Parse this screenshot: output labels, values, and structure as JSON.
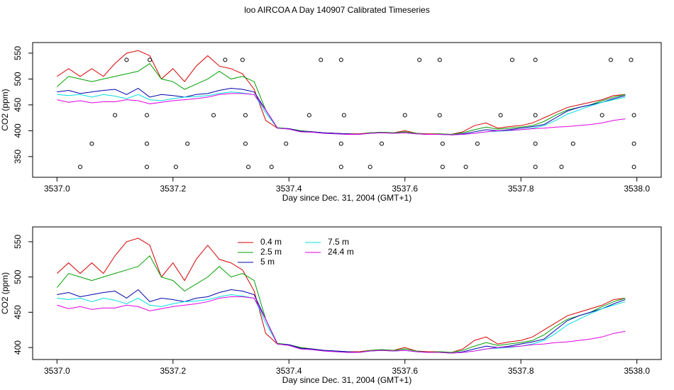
{
  "chart_data": [
    {
      "type": "line",
      "title": "loo AIRCOA A  Day 140907  Calibrated Timeseries",
      "x_label": "Day since Dec. 31, 2004 (GMT+1)",
      "y_label": "CO2 (ppm)",
      "xlim": [
        3536.958,
        3538.042
      ],
      "ylim": [
        310,
        570.5
      ],
      "xticks": [
        {
          "value": 3537.0,
          "label": "3537.0"
        },
        {
          "value": 3537.2,
          "label": "3537.2"
        },
        {
          "value": 3537.4,
          "label": "3537.4"
        },
        {
          "value": 3537.6,
          "label": "3537.6"
        },
        {
          "value": 3537.8,
          "label": "3537.8"
        },
        {
          "value": 3538.0,
          "label": "3538.0"
        }
      ],
      "yticks": [
        350,
        400,
        450,
        500,
        550
      ],
      "x": [
        3537.0,
        3537.02,
        3537.04,
        3537.06,
        3537.08,
        3537.1,
        3537.12,
        3537.14,
        3537.16,
        3537.18,
        3537.2,
        3537.22,
        3537.24,
        3537.26,
        3537.28,
        3537.3,
        3537.32,
        3537.34,
        3537.36,
        3537.38,
        3537.4,
        3537.42,
        3537.44,
        3537.46,
        3537.48,
        3537.5,
        3537.52,
        3537.54,
        3537.56,
        3537.58,
        3537.6,
        3537.62,
        3537.64,
        3537.66,
        3537.68,
        3537.7,
        3537.72,
        3537.74,
        3537.76,
        3537.78,
        3537.8,
        3537.82,
        3537.84,
        3537.86,
        3537.88,
        3537.9,
        3537.92,
        3537.94,
        3537.96,
        3537.98
      ],
      "series": [
        {
          "color": "#d40000",
          "values": [
            505,
            520,
            505,
            520,
            505,
            530,
            550,
            555,
            545,
            500,
            520,
            495,
            525,
            545,
            525,
            520,
            510,
            480,
            420,
            405,
            404,
            400,
            398,
            396,
            395,
            394,
            394,
            396,
            397,
            396,
            400,
            395,
            394,
            394,
            393,
            398,
            410,
            415,
            405,
            408,
            410,
            415,
            425,
            435,
            445,
            450,
            455,
            460,
            468,
            470
          ]
        },
        {
          "color": "#00a000",
          "values": [
            485,
            505,
            500,
            495,
            500,
            505,
            510,
            515,
            530,
            500,
            495,
            480,
            490,
            500,
            515,
            500,
            505,
            495,
            440,
            406,
            404,
            400,
            398,
            396,
            395,
            394,
            393,
            396,
            397,
            396,
            398,
            395,
            393,
            394,
            393,
            396,
            402,
            407,
            403,
            405,
            407,
            410,
            418,
            430,
            440,
            445,
            450,
            458,
            465,
            470
          ]
        },
        {
          "color": "#0000b0",
          "values": [
            475,
            478,
            472,
            475,
            478,
            480,
            470,
            482,
            465,
            470,
            468,
            465,
            470,
            472,
            478,
            482,
            480,
            475,
            440,
            405,
            404,
            399,
            398,
            396,
            395,
            394,
            393,
            395,
            396,
            395,
            396,
            394,
            393,
            393,
            392,
            394,
            398,
            402,
            400,
            402,
            405,
            408,
            412,
            425,
            438,
            445,
            450,
            455,
            462,
            468
          ]
        },
        {
          "color": "#00dede",
          "values": [
            470,
            468,
            470,
            465,
            470,
            467,
            462,
            470,
            460,
            458,
            462,
            465,
            466,
            468,
            472,
            475,
            473,
            470,
            435,
            405,
            403,
            398,
            397,
            395,
            394,
            393,
            393,
            395,
            396,
            395,
            396,
            394,
            393,
            393,
            392,
            393,
            395,
            398,
            399,
            400,
            402,
            405,
            410,
            420,
            432,
            440,
            448,
            455,
            460,
            465
          ]
        },
        {
          "color": "#e000e0",
          "values": [
            460,
            455,
            458,
            454,
            456,
            456,
            460,
            458,
            452,
            455,
            458,
            460,
            462,
            465,
            470,
            472,
            472,
            470,
            440,
            405,
            403,
            398,
            397,
            395,
            394,
            393,
            393,
            395,
            396,
            395,
            396,
            394,
            393,
            393,
            392,
            393,
            395,
            398,
            400,
            401,
            402,
            404,
            405,
            407,
            408,
            410,
            412,
            415,
            420,
            423
          ]
        }
      ],
      "points": {
        "x": [
          3537.12,
          3537.16,
          3537.29,
          3537.32,
          3537.455,
          3537.49,
          3537.625,
          3537.66,
          3537.785,
          3537.825,
          3537.955,
          3537.99,
          3537.1,
          3537.155,
          3537.27,
          3537.325,
          3537.435,
          3537.495,
          3537.6,
          3537.66,
          3537.765,
          3537.825,
          3537.94,
          3537.995,
          3537.06,
          3537.155,
          3537.225,
          3537.325,
          3537.395,
          3537.49,
          3537.56,
          3537.665,
          3537.725,
          3537.825,
          3537.89,
          3537.995,
          3537.04,
          3537.155,
          3537.205,
          3537.33,
          3537.37,
          3537.49,
          3537.54,
          3537.665,
          3537.705,
          3537.825,
          3537.87,
          3537.995
        ],
        "y": [
          537,
          537,
          537,
          537,
          537,
          537,
          537,
          537,
          537,
          537,
          537,
          537,
          430,
          430,
          430,
          430,
          430,
          430,
          430,
          430,
          430,
          430,
          430,
          430,
          375,
          375,
          375,
          375,
          375,
          375,
          375,
          375,
          375,
          375,
          375,
          375,
          330,
          330,
          330,
          330,
          330,
          330,
          330,
          330,
          330,
          330,
          330,
          330
        ]
      }
    },
    {
      "type": "line",
      "x_label": "Day since Dec. 31, 2004 (GMT+1)",
      "y_label": "CO2 (ppm)",
      "xlim": [
        3536.958,
        3538.042
      ],
      "ylim": [
        383,
        571
      ],
      "xticks": [
        {
          "value": 3537.0,
          "label": "3537.0"
        },
        {
          "value": 3537.2,
          "label": "3537.2"
        },
        {
          "value": 3537.4,
          "label": "3537.4"
        },
        {
          "value": 3537.6,
          "label": "3537.6"
        },
        {
          "value": 3537.8,
          "label": "3537.8"
        },
        {
          "value": 3538.0,
          "label": "3538.0"
        }
      ],
      "yticks": [
        400,
        450,
        500,
        550
      ],
      "legend": "top",
      "x": [
        3537.0,
        3537.02,
        3537.04,
        3537.06,
        3537.08,
        3537.1,
        3537.12,
        3537.14,
        3537.16,
        3537.18,
        3537.2,
        3537.22,
        3537.24,
        3537.26,
        3537.28,
        3537.3,
        3537.32,
        3537.34,
        3537.36,
        3537.38,
        3537.4,
        3537.42,
        3537.44,
        3537.46,
        3537.48,
        3537.5,
        3537.52,
        3537.54,
        3537.56,
        3537.58,
        3537.6,
        3537.62,
        3537.64,
        3537.66,
        3537.68,
        3537.7,
        3537.72,
        3537.74,
        3537.76,
        3537.78,
        3537.8,
        3537.82,
        3537.84,
        3537.86,
        3537.88,
        3537.9,
        3537.92,
        3537.94,
        3537.96,
        3537.98
      ],
      "series": [
        {
          "name": "0.4 m",
          "color": "#d40000",
          "values": [
            505,
            520,
            505,
            520,
            505,
            530,
            550,
            555,
            545,
            500,
            520,
            495,
            525,
            545,
            525,
            520,
            510,
            480,
            420,
            405,
            404,
            400,
            398,
            396,
            395,
            394,
            394,
            396,
            397,
            396,
            400,
            395,
            394,
            394,
            393,
            398,
            410,
            415,
            405,
            408,
            410,
            415,
            425,
            435,
            445,
            450,
            455,
            460,
            468,
            470
          ]
        },
        {
          "name": "2.5 m",
          "color": "#00a000",
          "values": [
            485,
            505,
            500,
            495,
            500,
            505,
            510,
            515,
            530,
            500,
            495,
            480,
            490,
            500,
            515,
            500,
            505,
            495,
            440,
            406,
            404,
            400,
            398,
            396,
            395,
            394,
            393,
            396,
            397,
            396,
            398,
            395,
            393,
            394,
            393,
            396,
            402,
            407,
            403,
            405,
            407,
            410,
            418,
            430,
            440,
            445,
            450,
            458,
            465,
            470
          ]
        },
        {
          "name": "5 m",
          "color": "#0000b0",
          "values": [
            475,
            478,
            472,
            475,
            478,
            480,
            470,
            482,
            465,
            470,
            468,
            465,
            470,
            472,
            478,
            482,
            480,
            475,
            440,
            405,
            404,
            399,
            398,
            396,
            395,
            394,
            393,
            395,
            396,
            395,
            396,
            394,
            393,
            393,
            392,
            394,
            398,
            402,
            400,
            402,
            405,
            408,
            412,
            425,
            438,
            445,
            450,
            455,
            462,
            468
          ]
        },
        {
          "name": "7.5 m",
          "color": "#00dede",
          "values": [
            470,
            468,
            470,
            465,
            470,
            467,
            462,
            470,
            460,
            458,
            462,
            465,
            466,
            468,
            472,
            475,
            473,
            470,
            435,
            405,
            403,
            398,
            397,
            395,
            394,
            393,
            393,
            395,
            396,
            395,
            396,
            394,
            393,
            393,
            392,
            393,
            395,
            398,
            399,
            400,
            402,
            405,
            410,
            420,
            432,
            440,
            448,
            455,
            460,
            465
          ]
        },
        {
          "name": "24.4 m",
          "color": "#e000e0",
          "values": [
            460,
            455,
            458,
            454,
            456,
            456,
            460,
            458,
            452,
            455,
            458,
            460,
            462,
            465,
            470,
            472,
            472,
            470,
            440,
            405,
            403,
            398,
            397,
            395,
            394,
            393,
            393,
            395,
            396,
            395,
            396,
            394,
            393,
            393,
            392,
            393,
            395,
            398,
            400,
            401,
            402,
            404,
            405,
            407,
            408,
            410,
            412,
            415,
            420,
            423
          ]
        }
      ]
    }
  ]
}
